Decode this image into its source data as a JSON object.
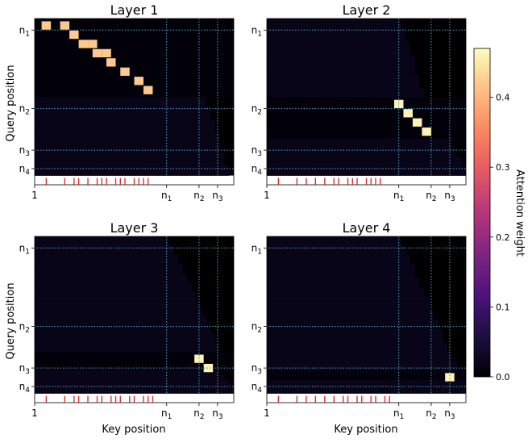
{
  "figure": {
    "ylabel": "Query position",
    "xlabel": "Key position"
  },
  "colorbar": {
    "label": "Attention weight",
    "min": 0.0,
    "max": 0.47,
    "ticks": [
      "0.0",
      "0.1",
      "0.2",
      "0.3",
      "0.4"
    ],
    "tick_values": [
      0.0,
      0.1,
      0.2,
      0.3,
      0.4
    ],
    "colormap": "magma"
  },
  "colors": {
    "grid_line": "#5aa0c8",
    "marker": "#e0302a",
    "background_row": "#000000"
  },
  "chart_data": [
    {
      "type": "heatmap",
      "title": "Layer 1",
      "x_ticks": [
        "1",
        "n1",
        "n2",
        "n3"
      ],
      "y_ticks": [
        "n1",
        "n2",
        "n3",
        "n4"
      ],
      "x_tick_positions": [
        1,
        29,
        36,
        40
      ],
      "y_tick_positions": [
        3,
        20,
        29,
        33
      ],
      "grid": true,
      "rows": 36,
      "cols": 43,
      "blocks": [
        {
          "rows": [
            1,
            17
          ],
          "cols": [
            1,
            43
          ],
          "value": 0.005
        },
        {
          "rows": [
            18,
            34
          ],
          "cols": [
            1,
            37
          ],
          "value": 0.02,
          "triangular_end": [
            37,
            42
          ]
        }
      ],
      "highlights": [
        {
          "row": 2,
          "col": 3,
          "value": 0.42
        },
        {
          "row": 2,
          "col": 7,
          "value": 0.42
        },
        {
          "row": 4,
          "col": 9,
          "value": 0.42
        },
        {
          "row": 6,
          "col": 11,
          "value": 0.42
        },
        {
          "row": 6,
          "col": 13,
          "value": 0.42
        },
        {
          "row": 8,
          "col": 14,
          "value": 0.42
        },
        {
          "row": 8,
          "col": 16,
          "value": 0.42
        },
        {
          "row": 10,
          "col": 17,
          "value": 0.42
        },
        {
          "row": 12,
          "col": 20,
          "value": 0.42
        },
        {
          "row": 14,
          "col": 23,
          "value": 0.42
        },
        {
          "row": 16,
          "col": 25,
          "value": 0.42
        }
      ],
      "markers": [
        3,
        7,
        9,
        10,
        12,
        14,
        15,
        16,
        18,
        19,
        20,
        22,
        23,
        24,
        25
      ]
    },
    {
      "type": "heatmap",
      "title": "Layer 2",
      "x_ticks": [
        "1",
        "n1",
        "n2",
        "n3"
      ],
      "y_ticks": [
        "n1",
        "n2",
        "n3",
        "n4"
      ],
      "x_tick_positions": [
        1,
        29,
        36,
        40
      ],
      "y_tick_positions": [
        3,
        20,
        29,
        33
      ],
      "grid": true,
      "rows": 36,
      "cols": 43,
      "blocks": [
        {
          "rows": [
            1,
            17
          ],
          "cols": [
            1,
            29
          ],
          "value": 0.02,
          "triangular_end": [
            29,
            34
          ]
        },
        {
          "rows": [
            18,
            26
          ],
          "cols": [
            1,
            43
          ],
          "value": 0.005
        },
        {
          "rows": [
            27,
            34
          ],
          "cols": [
            1,
            43
          ],
          "value": 0.02,
          "triangular_end": [
            40,
            43
          ]
        }
      ],
      "highlights": [
        {
          "row": 19,
          "col": 29,
          "value": 0.46
        },
        {
          "row": 21,
          "col": 31,
          "value": 0.46
        },
        {
          "row": 23,
          "col": 33,
          "value": 0.46
        },
        {
          "row": 25,
          "col": 35,
          "value": 0.46
        }
      ],
      "markers": [
        3,
        7,
        9,
        11,
        13,
        15,
        16,
        18,
        19,
        20,
        22,
        23,
        24,
        25
      ]
    },
    {
      "type": "heatmap",
      "title": "Layer 3",
      "x_ticks": [
        "1",
        "n1",
        "n2",
        "n3"
      ],
      "y_ticks": [
        "n1",
        "n2",
        "n3",
        "n4"
      ],
      "x_tick_positions": [
        1,
        29,
        36,
        40
      ],
      "y_tick_positions": [
        3,
        20,
        29,
        33
      ],
      "grid": true,
      "rows": 36,
      "cols": 43,
      "blocks": [
        {
          "rows": [
            1,
            25
          ],
          "cols": [
            1,
            29
          ],
          "value": 0.02,
          "triangular_end": [
            29,
            40
          ]
        },
        {
          "rows": [
            26,
            29
          ],
          "cols": [
            1,
            43
          ],
          "value": 0.005
        },
        {
          "rows": [
            30,
            34
          ],
          "cols": [
            1,
            43
          ],
          "value": 0.02,
          "triangular_end": [
            40,
            43
          ]
        }
      ],
      "highlights": [
        {
          "row": 27,
          "col": 36,
          "value": 0.46
        },
        {
          "row": 29,
          "col": 38,
          "value": 0.46
        }
      ],
      "markers": [
        3,
        7,
        9,
        10,
        12,
        14,
        15,
        17,
        18,
        19,
        21,
        22,
        24,
        25,
        26
      ]
    },
    {
      "type": "heatmap",
      "title": "Layer 4",
      "x_ticks": [
        "1",
        "n1",
        "n2",
        "n3"
      ],
      "y_ticks": [
        "n1",
        "n2",
        "n3",
        "n4"
      ],
      "x_tick_positions": [
        1,
        29,
        36,
        40
      ],
      "y_tick_positions": [
        3,
        20,
        29,
        33
      ],
      "grid": true,
      "rows": 36,
      "cols": 43,
      "blocks": [
        {
          "rows": [
            1,
            29
          ],
          "cols": [
            1,
            29
          ],
          "value": 0.02,
          "triangular_end": [
            29,
            41
          ]
        },
        {
          "rows": [
            30,
            31
          ],
          "cols": [
            1,
            43
          ],
          "value": 0.005
        },
        {
          "rows": [
            32,
            34
          ],
          "cols": [
            1,
            43
          ],
          "value": 0.02
        }
      ],
      "highlights": [
        {
          "row": 31,
          "col": 40,
          "value": 0.46
        }
      ],
      "markers": [
        3,
        7,
        9,
        11,
        13,
        15,
        17,
        18,
        20,
        21,
        23,
        24,
        26,
        27
      ]
    }
  ]
}
